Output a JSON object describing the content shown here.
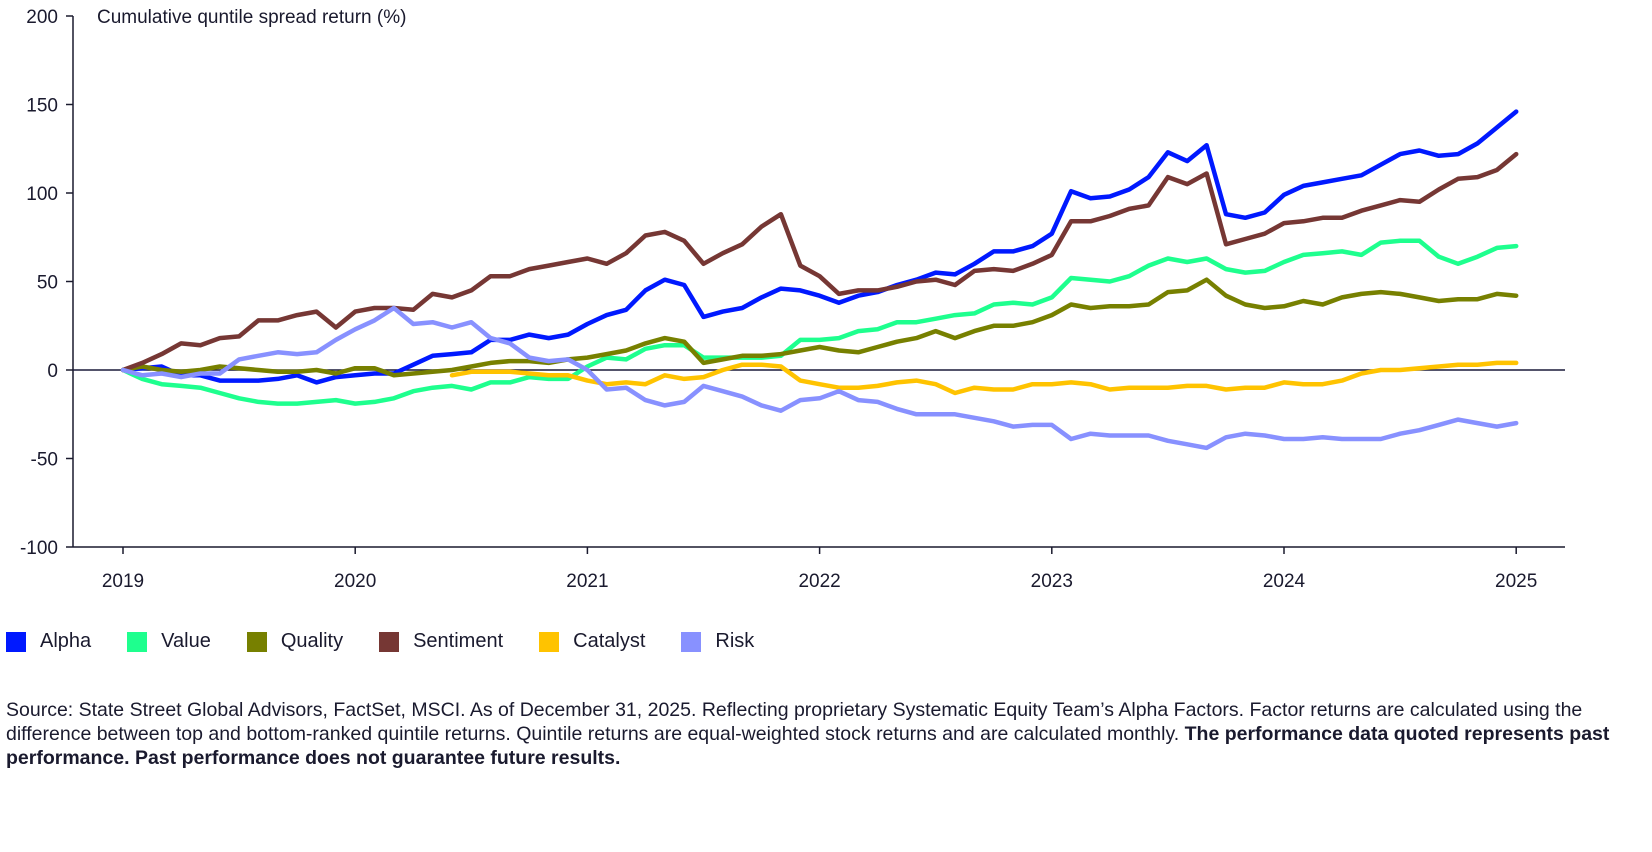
{
  "chart_data": {
    "type": "line",
    "ylabel": "Cumulative quntile spread return (%)",
    "ylim": [
      -100,
      200
    ],
    "yticks": [
      -100,
      -50,
      0,
      50,
      100,
      150,
      200
    ],
    "xticks": [
      "2019",
      "2020",
      "2021",
      "2022",
      "2023",
      "2024",
      "2025"
    ],
    "grid": false,
    "legend_position": "bottom-left",
    "zero_line_color": "#1a1a3a",
    "x": [
      "2019-01",
      "2019-02",
      "2019-03",
      "2019-04",
      "2019-05",
      "2019-06",
      "2019-07",
      "2019-08",
      "2019-09",
      "2019-10",
      "2019-11",
      "2019-12",
      "2020-01",
      "2020-02",
      "2020-03",
      "2020-04",
      "2020-05",
      "2020-06",
      "2020-07",
      "2020-08",
      "2020-09",
      "2020-10",
      "2020-11",
      "2020-12",
      "2021-01",
      "2021-02",
      "2021-03",
      "2021-04",
      "2021-05",
      "2021-06",
      "2021-07",
      "2021-08",
      "2021-09",
      "2021-10",
      "2021-11",
      "2021-12",
      "2022-01",
      "2022-02",
      "2022-03",
      "2022-04",
      "2022-05",
      "2022-06",
      "2022-07",
      "2022-08",
      "2022-09",
      "2022-10",
      "2022-11",
      "2022-12",
      "2023-01",
      "2023-02",
      "2023-03",
      "2023-04",
      "2023-05",
      "2023-06",
      "2023-07",
      "2023-08",
      "2023-09",
      "2023-10",
      "2023-11",
      "2023-12",
      "2024-01",
      "2024-02",
      "2024-03",
      "2024-04",
      "2024-05",
      "2024-06",
      "2024-07",
      "2024-08",
      "2024-09",
      "2024-10",
      "2024-11",
      "2024-12",
      "2025-01"
    ],
    "series": [
      {
        "name": "Alpha",
        "color": "#0019ff",
        "values": [
          0,
          1,
          2,
          -3,
          -3,
          -6,
          -6,
          -6,
          -5,
          -3,
          -7,
          -4,
          -3,
          -2,
          -2,
          3,
          8,
          9,
          10,
          17,
          17,
          20,
          18,
          20,
          26,
          31,
          34,
          45,
          51,
          48,
          30,
          33,
          35,
          41,
          46,
          45,
          42,
          38,
          42,
          44,
          48,
          51,
          55,
          54,
          60,
          67,
          67,
          70,
          77,
          101,
          97,
          98,
          102,
          109,
          123,
          118,
          127,
          88,
          86,
          89,
          99,
          104,
          106,
          108,
          110,
          116,
          122,
          124,
          121,
          122,
          128,
          137,
          146
        ]
      },
      {
        "name": "Value",
        "color": "#1eff8e",
        "values": [
          0,
          -5,
          -8,
          -9,
          -10,
          -13,
          -16,
          -18,
          -19,
          -19,
          -18,
          -17,
          -19,
          -18,
          -16,
          -12,
          -10,
          -9,
          -11,
          -7,
          -7,
          -4,
          -5,
          -5,
          2,
          7,
          6,
          12,
          14,
          14,
          7,
          7,
          7,
          7,
          8,
          17,
          17,
          18,
          22,
          23,
          27,
          27,
          29,
          31,
          32,
          37,
          38,
          37,
          41,
          52,
          51,
          50,
          53,
          59,
          63,
          61,
          63,
          57,
          55,
          56,
          61,
          65,
          66,
          67,
          65,
          72,
          73,
          73,
          64,
          60,
          64,
          69,
          70
        ]
      },
      {
        "name": "Quality",
        "color": "#778000",
        "values": [
          0,
          2,
          0,
          -1,
          0,
          2,
          1,
          0,
          -1,
          -1,
          0,
          -2,
          1,
          1,
          -3,
          -2,
          -1,
          0,
          2,
          4,
          5,
          5,
          4,
          6,
          7,
          9,
          11,
          15,
          18,
          16,
          4,
          6,
          8,
          8,
          9,
          11,
          13,
          11,
          10,
          13,
          16,
          18,
          22,
          18,
          22,
          25,
          25,
          27,
          31,
          37,
          35,
          36,
          36,
          37,
          44,
          45,
          51,
          42,
          37,
          35,
          36,
          39,
          37,
          41,
          43,
          44,
          43,
          41,
          39,
          40,
          40,
          43,
          42
        ]
      },
      {
        "name": "Sentiment",
        "color": "#763734",
        "values": [
          0,
          4,
          9,
          15,
          14,
          18,
          19,
          28,
          28,
          31,
          33,
          24,
          33,
          35,
          35,
          34,
          43,
          41,
          45,
          53,
          53,
          57,
          59,
          61,
          63,
          60,
          66,
          76,
          78,
          73,
          60,
          66,
          71,
          81,
          88,
          59,
          53,
          43,
          45,
          45,
          47,
          50,
          51,
          48,
          56,
          57,
          56,
          60,
          65,
          84,
          84,
          87,
          91,
          93,
          109,
          105,
          111,
          71,
          74,
          77,
          83,
          84,
          86,
          86,
          90,
          93,
          96,
          95,
          102,
          108,
          109,
          113,
          122
        ]
      },
      {
        "name": "Catalyst",
        "color": "#ffc300",
        "values": [
          null,
          null,
          null,
          null,
          null,
          null,
          null,
          null,
          null,
          null,
          null,
          null,
          null,
          null,
          null,
          null,
          null,
          -3,
          -1,
          -1,
          -1,
          -2,
          -3,
          -3,
          -6,
          -8,
          -7,
          -8,
          -3,
          -5,
          -4,
          0,
          3,
          3,
          2,
          -6,
          -8,
          -10,
          -10,
          -9,
          -7,
          -6,
          -8,
          -13,
          -10,
          -11,
          -11,
          -8,
          -8,
          -7,
          -8,
          -11,
          -10,
          -10,
          -10,
          -9,
          -9,
          -11,
          -10,
          -10,
          -7,
          -8,
          -8,
          -6,
          -2,
          0,
          0,
          1,
          2,
          3,
          3,
          4,
          4
        ]
      },
      {
        "name": "Risk",
        "color": "#8891ff",
        "values": [
          0,
          -3,
          -2,
          -4,
          -2,
          -2,
          6,
          8,
          10,
          9,
          10,
          17,
          23,
          28,
          35,
          26,
          27,
          24,
          27,
          18,
          15,
          7,
          5,
          6,
          0,
          -11,
          -10,
          -17,
          -20,
          -18,
          -9,
          -12,
          -15,
          -20,
          -23,
          -17,
          -16,
          -12,
          -17,
          -18,
          -22,
          -25,
          -25,
          -25,
          -27,
          -29,
          -32,
          -31,
          -31,
          -39,
          -36,
          -37,
          -37,
          -37,
          -40,
          -42,
          -44,
          -38,
          -36,
          -37,
          -39,
          -39,
          -38,
          -39,
          -39,
          -39,
          -36,
          -34,
          -31,
          -28,
          -30,
          -32,
          -30
        ]
      }
    ]
  },
  "footnote": {
    "text": "Source: State Street Global Advisors, FactSet, MSCI. As of December 31, 2025. Reflecting proprietary Systematic Equity Team’s Alpha Factors. Factor returns are calculated using the difference between top and bottom-ranked quintile returns. Quintile returns are equal-weighted stock returns and are calculated monthly. ",
    "bold": "The performance data quoted represents past performance. Past performance does not guarantee future results."
  }
}
